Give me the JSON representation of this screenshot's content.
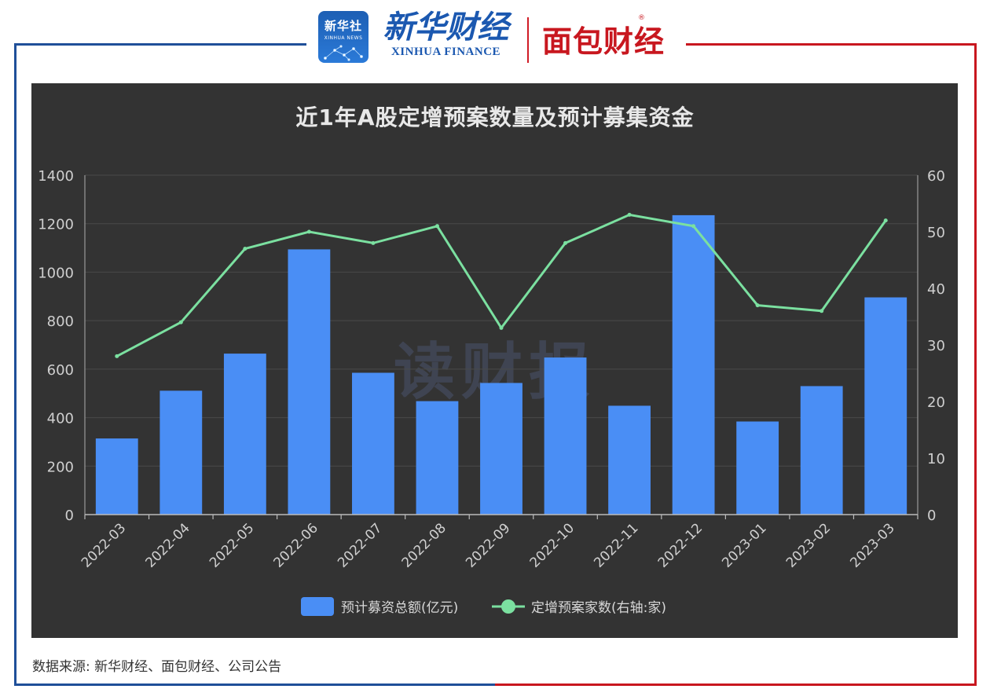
{
  "header": {
    "xinhua_news_cn": "新华社",
    "xinhua_news_en": "XINHUA NEWS",
    "xinhua_finance_cn": "新华财经",
    "xinhua_finance_en": "XINHUA FINANCE",
    "mianbao_cn": "面包财经",
    "registered_mark": "®",
    "watermark": "读财报"
  },
  "colors": {
    "bar": "#4a8ef5",
    "line": "#7be0a0",
    "panel": "#333333",
    "frame_blue": "#1f4f99",
    "frame_red": "#c8171f"
  },
  "chart_data": {
    "type": "bar",
    "title": "近1年A股定增预案数量及预计募集资金",
    "categories": [
      "2022-03",
      "2022-04",
      "2022-05",
      "2022-06",
      "2022-07",
      "2022-08",
      "2022-09",
      "2022-10",
      "2022-11",
      "2022-12",
      "2023-01",
      "2023-02",
      "2023-03"
    ],
    "series": [
      {
        "name": "预计募资总额(亿元)",
        "type": "bar",
        "axis": "left",
        "values": [
          314,
          511,
          664,
          1094,
          585,
          468,
          543,
          648,
          449,
          1235,
          384,
          530,
          896
        ]
      },
      {
        "name": "定增预案家数(右轴:家)",
        "type": "line",
        "axis": "right",
        "values": [
          28,
          34,
          47,
          50,
          48,
          51,
          33,
          48,
          53,
          51,
          37,
          36,
          52
        ]
      }
    ],
    "y_left": {
      "ylim": [
        0,
        1400
      ],
      "ticks": [
        "0",
        "200",
        "400",
        "600",
        "800",
        "1000",
        "1200",
        "1400"
      ]
    },
    "y_right": {
      "ylim": [
        0,
        60
      ],
      "ticks": [
        "0",
        "10",
        "20",
        "30",
        "40",
        "50",
        "60"
      ]
    },
    "grid": true,
    "legend": "bottom-center"
  },
  "footer": {
    "source": "数据来源: 新华财经、面包财经、公司公告"
  }
}
